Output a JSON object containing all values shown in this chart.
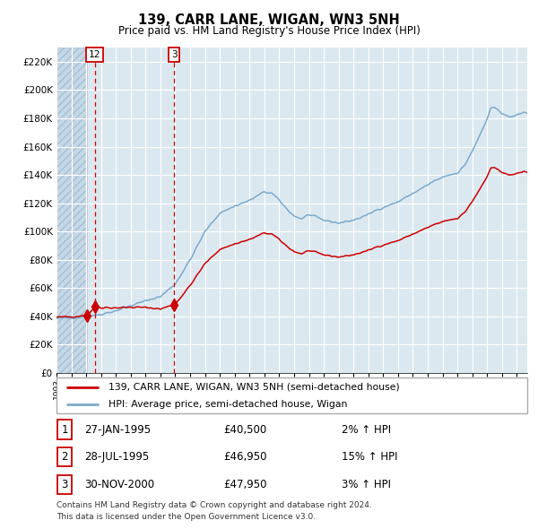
{
  "title": "139, CARR LANE, WIGAN, WN3 5NH",
  "subtitle": "Price paid vs. HM Land Registry's House Price Index (HPI)",
  "legend_line1": "139, CARR LANE, WIGAN, WN3 5NH (semi-detached house)",
  "legend_line2": "HPI: Average price, semi-detached house, Wigan",
  "footnote1": "Contains HM Land Registry data © Crown copyright and database right 2024.",
  "footnote2": "This data is licensed under the Open Government Licence v3.0.",
  "transactions": [
    {
      "num": 1,
      "date": "27-JAN-1995",
      "price": "£40,500",
      "pct": "2% ↑ HPI"
    },
    {
      "num": 2,
      "date": "28-JUL-1995",
      "price": "£46,950",
      "pct": "15% ↑ HPI"
    },
    {
      "num": 3,
      "date": "30-NOV-2000",
      "price": "£47,950",
      "pct": "3% ↑ HPI"
    }
  ],
  "sale_dates_decimal": [
    1995.07,
    1995.58,
    2000.92
  ],
  "sale_prices": [
    40500,
    46950,
    47950
  ],
  "vline_dates": [
    1995.58,
    2000.92
  ],
  "vline_labels": [
    "12",
    "3"
  ],
  "red_line_color": "#cc0000",
  "blue_line_color": "#7aaacc",
  "background_color": "#dce8f0",
  "grid_color": "#ffffff",
  "vline_color": "#cc0000",
  "ylim": [
    0,
    230000
  ],
  "yticks": [
    0,
    20000,
    40000,
    60000,
    80000,
    100000,
    120000,
    140000,
    160000,
    180000,
    200000,
    220000
  ],
  "xlim_start": 1993.0,
  "xlim_end": 2024.7
}
